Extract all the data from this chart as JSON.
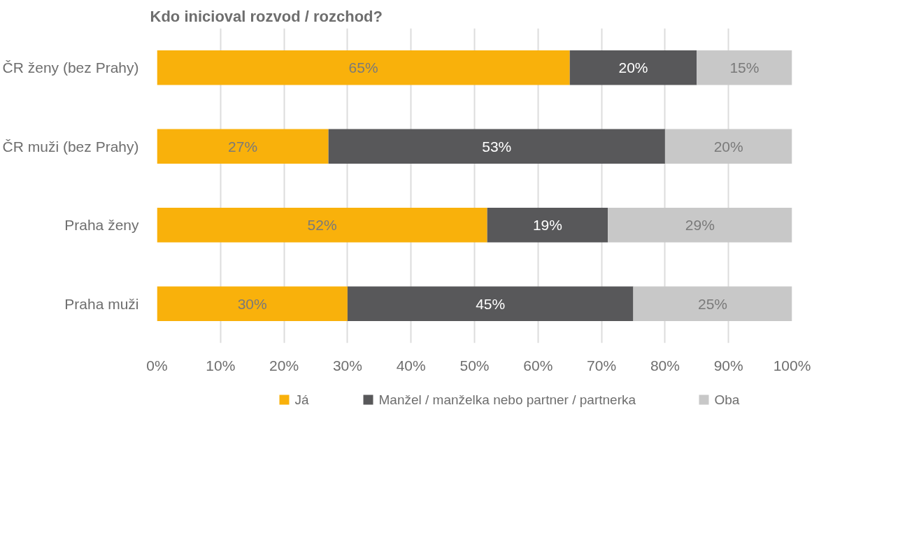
{
  "chart_data": {
    "type": "bar",
    "orientation": "horizontal",
    "stacked": true,
    "title": "Kdo inicioval rozvod / rozchod?",
    "categories": [
      "ČR ženy (bez Prahy)",
      "ČR muži (bez Prahy)",
      "Praha ženy",
      "Praha muži"
    ],
    "series": [
      {
        "name": "Já",
        "color": "#f9b10b",
        "values": [
          65,
          27,
          52,
          30
        ],
        "value_labels": [
          "65%",
          "27%",
          "52%",
          "30%"
        ]
      },
      {
        "name": "Manžel / manželka nebo partner / partnerka",
        "color": "#58585a",
        "values": [
          20,
          53,
          19,
          45
        ],
        "value_labels": [
          "20%",
          "53%",
          "19%",
          "45%"
        ]
      },
      {
        "name": "Oba",
        "color": "#c8c8c8",
        "values": [
          15,
          20,
          29,
          25
        ],
        "value_labels": [
          "15%",
          "20%",
          "29%",
          "25%"
        ]
      }
    ],
    "xlim": [
      0,
      100
    ],
    "xticks": [
      {
        "value": 0,
        "label": "0%"
      },
      {
        "value": 10,
        "label": "10%"
      },
      {
        "value": 20,
        "label": "20%"
      },
      {
        "value": 30,
        "label": "30%"
      },
      {
        "value": 40,
        "label": "40%"
      },
      {
        "value": 50,
        "label": "50%"
      },
      {
        "value": 60,
        "label": "60%"
      },
      {
        "value": 70,
        "label": "70%"
      },
      {
        "value": 80,
        "label": "80%"
      },
      {
        "value": 90,
        "label": "90%"
      },
      {
        "value": 100,
        "label": "100%"
      }
    ],
    "grid": "x",
    "legend": "bottom"
  }
}
